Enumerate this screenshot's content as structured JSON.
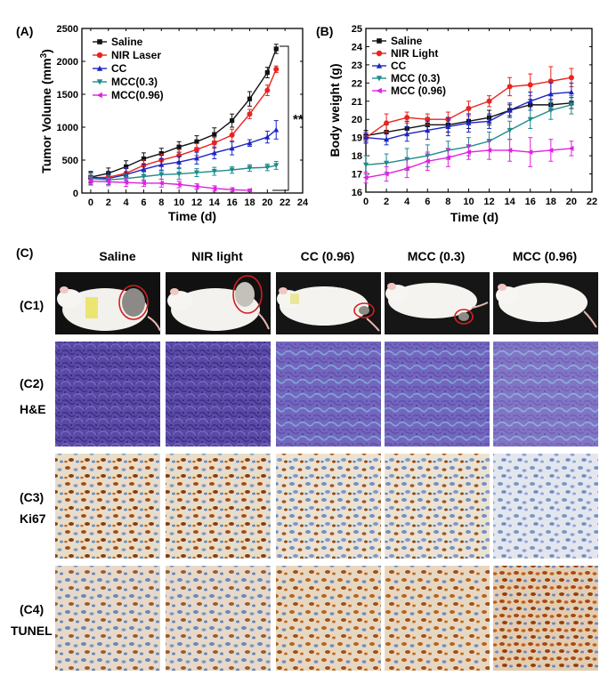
{
  "chart_data": [
    {
      "panel": "(A)",
      "type": "line",
      "xlabel": "Time (d)",
      "ylabel": "Tumor Volume (mm3)",
      "ylabel_main": "Tumor Volume (mm",
      "ylabel_sup": "3",
      "ylabel_end": ")",
      "xlim": [
        -1,
        24
      ],
      "ylim": [
        0,
        2500
      ],
      "xticks": [
        0,
        2,
        4,
        6,
        8,
        10,
        12,
        14,
        16,
        18,
        20,
        22,
        24
      ],
      "yticks": [
        0,
        500,
        1000,
        1500,
        2000,
        2500
      ],
      "significance": "**",
      "legend_position": "top-left",
      "series": [
        {
          "name": "Saline",
          "color": "#111111",
          "marker": "square",
          "x": [
            0,
            2,
            4,
            6,
            8,
            10,
            12,
            14,
            16,
            18,
            20,
            21
          ],
          "y": [
            240,
            300,
            400,
            520,
            600,
            700,
            780,
            890,
            1100,
            1430,
            1830,
            2190
          ],
          "err": [
            80,
            80,
            90,
            90,
            80,
            80,
            90,
            100,
            100,
            110,
            80,
            70
          ]
        },
        {
          "name": "NIR Laser",
          "color": "#e8241e",
          "marker": "circle",
          "x": [
            0,
            2,
            4,
            6,
            8,
            10,
            12,
            14,
            16,
            18,
            20,
            21
          ],
          "y": [
            230,
            240,
            300,
            420,
            500,
            570,
            660,
            760,
            880,
            1200,
            1560,
            1880
          ],
          "err": [
            70,
            70,
            80,
            80,
            90,
            90,
            90,
            80,
            90,
            70,
            80,
            50
          ]
        },
        {
          "name": "CC",
          "color": "#1c25c4",
          "marker": "triangle-up",
          "x": [
            0,
            2,
            4,
            6,
            8,
            10,
            12,
            14,
            16,
            18,
            20,
            21
          ],
          "y": [
            240,
            220,
            280,
            360,
            430,
            470,
            530,
            610,
            680,
            760,
            850,
            960
          ],
          "err": [
            90,
            90,
            90,
            80,
            90,
            90,
            90,
            90,
            100,
            50,
            90,
            140
          ]
        },
        {
          "name": "MCC(0.3)",
          "color": "#1f8a8a",
          "marker": "triangle-down",
          "x": [
            0,
            2,
            4,
            6,
            8,
            10,
            12,
            14,
            16,
            18,
            20,
            21
          ],
          "y": [
            220,
            200,
            220,
            250,
            280,
            290,
            310,
            330,
            350,
            380,
            390,
            420
          ],
          "err": [
            90,
            70,
            60,
            70,
            70,
            80,
            60,
            60,
            50,
            50,
            50,
            60
          ]
        },
        {
          "name": "MCC(0.96)",
          "color": "#e020e0",
          "marker": "triangle-left",
          "x": [
            0,
            2,
            4,
            6,
            8,
            10,
            12,
            14,
            16,
            18
          ],
          "y": [
            180,
            170,
            160,
            150,
            150,
            130,
            100,
            70,
            50,
            40
          ],
          "err": [
            60,
            60,
            60,
            50,
            60,
            50,
            40,
            40,
            30,
            20
          ]
        }
      ]
    },
    {
      "panel": "(B)",
      "type": "line",
      "xlabel": "Time (d)",
      "ylabel": "Body weight (g)",
      "xlim": [
        0,
        22
      ],
      "ylim": [
        16,
        25
      ],
      "xticks": [
        0,
        2,
        4,
        6,
        8,
        10,
        12,
        14,
        16,
        18,
        20,
        22
      ],
      "yticks": [
        16,
        17,
        18,
        19,
        20,
        21,
        22,
        23,
        24,
        25
      ],
      "legend_position": "top-left",
      "series": [
        {
          "name": "Saline",
          "color": "#111111",
          "marker": "square",
          "x": [
            0,
            2,
            4,
            6,
            8,
            10,
            12,
            14,
            16,
            18,
            20
          ],
          "y": [
            19.1,
            19.3,
            19.5,
            19.7,
            19.7,
            19.9,
            20.1,
            20.5,
            20.8,
            20.8,
            20.9
          ],
          "err": [
            0.3,
            0.4,
            0.4,
            0.4,
            0.4,
            0.4,
            0.4,
            0.3,
            0.3,
            0.3,
            0.3
          ]
        },
        {
          "name": "NIR Light",
          "color": "#e8241e",
          "marker": "circle",
          "x": [
            0,
            2,
            4,
            6,
            8,
            10,
            12,
            14,
            16,
            18,
            20
          ],
          "y": [
            19.0,
            19.8,
            20.1,
            20.0,
            20.0,
            20.6,
            21.0,
            21.8,
            21.9,
            22.1,
            22.3
          ],
          "err": [
            0.3,
            0.5,
            0.3,
            0.3,
            0.4,
            0.4,
            0.3,
            0.5,
            0.6,
            0.8,
            0.5
          ]
        },
        {
          "name": "CC",
          "color": "#1c25c4",
          "marker": "triangle-up",
          "x": [
            0,
            2,
            4,
            6,
            8,
            10,
            12,
            14,
            16,
            18,
            20
          ],
          "y": [
            19.0,
            18.9,
            19.2,
            19.4,
            19.6,
            19.8,
            19.9,
            20.5,
            21.0,
            21.4,
            21.5
          ],
          "err": [
            0.3,
            0.3,
            0.4,
            0.5,
            0.5,
            0.5,
            0.4,
            0.4,
            0.5,
            0.6,
            0.5
          ]
        },
        {
          "name": "MCC (0.3)",
          "color": "#1f8a8a",
          "marker": "triangle-down",
          "x": [
            0,
            2,
            4,
            6,
            8,
            10,
            12,
            14,
            16,
            18,
            20
          ],
          "y": [
            17.5,
            17.6,
            17.8,
            18.0,
            18.3,
            18.5,
            18.8,
            19.4,
            20.0,
            20.5,
            20.8
          ],
          "err": [
            0.5,
            0.5,
            0.6,
            0.6,
            0.5,
            0.5,
            0.5,
            0.5,
            0.5,
            0.5,
            0.5
          ]
        },
        {
          "name": "MCC (0.96)",
          "color": "#e020e0",
          "marker": "triangle-left",
          "x": [
            0,
            2,
            4,
            6,
            8,
            10,
            12,
            14,
            16,
            18,
            20
          ],
          "y": [
            16.8,
            17.0,
            17.3,
            17.7,
            17.9,
            18.2,
            18.3,
            18.3,
            18.2,
            18.3,
            18.4
          ],
          "err": [
            0.3,
            0.4,
            0.5,
            0.5,
            0.5,
            0.4,
            0.5,
            0.6,
            0.8,
            0.6,
            0.4
          ]
        }
      ]
    }
  ],
  "panel_c": {
    "label": "(C)",
    "columns": [
      "Saline",
      "NIR light",
      "CC (0.96)",
      "MCC (0.3)",
      "MCC (0.96)"
    ],
    "rows": [
      {
        "id": "C1",
        "label": "(C1)",
        "sublabel": ""
      },
      {
        "id": "C2",
        "label": "(C2)",
        "sublabel": "H&E"
      },
      {
        "id": "C3",
        "label": "(C3)",
        "sublabel": "Ki67"
      },
      {
        "id": "C4",
        "label": "(C4)",
        "sublabel": "TUNEL"
      }
    ]
  }
}
